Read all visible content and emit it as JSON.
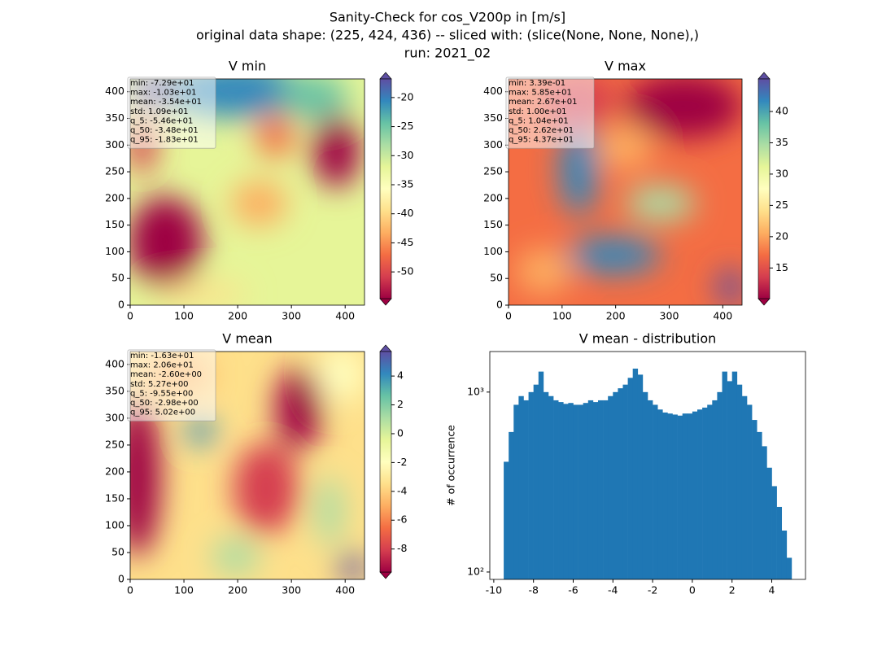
{
  "figure_title": [
    "Sanity-Check for cos_V200p in [m/s]",
    "original data shape: (225, 424, 436) -- sliced with: (slice(None, None, None),)",
    "run: 2021_02"
  ],
  "chart_data": [
    {
      "type": "heatmap",
      "title": "V min",
      "colormap": "Spectral",
      "stats": [
        "min: -7.29e+01",
        "max: -1.03e+01",
        "mean: -3.54e+01",
        "std: 1.09e+01",
        "q_5: -5.46e+01",
        "q_50: -3.48e+01",
        "q_95: -1.83e+01"
      ],
      "xlim": [
        0,
        436
      ],
      "ylim": [
        0,
        424
      ],
      "xticks": [
        0,
        100,
        200,
        300,
        400
      ],
      "yticks": [
        0,
        50,
        100,
        150,
        200,
        250,
        300,
        350,
        400
      ],
      "clim": [
        -54.6,
        -16.8
      ],
      "cticks": [
        -50,
        -45,
        -40,
        -35,
        -30,
        -25,
        -20
      ]
    },
    {
      "type": "heatmap",
      "title": "V max",
      "colormap": "Spectral",
      "stats": [
        "min: 3.39e-01",
        "max: 5.85e+01",
        "mean: 2.67e+01",
        "std: 1.00e+01",
        "q_5: 1.04e+01",
        "q_50: 2.62e+01",
        "q_95: 4.37e+01"
      ],
      "xlim": [
        0,
        436
      ],
      "ylim": [
        0,
        424
      ],
      "xticks": [
        0,
        100,
        200,
        300,
        400
      ],
      "yticks": [
        0,
        50,
        100,
        150,
        200,
        250,
        300,
        350,
        400
      ],
      "clim": [
        10.1,
        45.2
      ],
      "cticks": [
        15,
        20,
        25,
        30,
        35,
        40
      ]
    },
    {
      "type": "heatmap",
      "title": "V mean",
      "colormap": "Spectral",
      "stats": [
        "min: -1.63e+01",
        "max: 2.06e+01",
        "mean: -2.60e+00",
        "std: 5.27e+00",
        "q_5: -9.55e+00",
        "q_50: -2.98e+00",
        "q_95: 5.02e+00"
      ],
      "xlim": [
        0,
        436
      ],
      "ylim": [
        0,
        424
      ],
      "xticks": [
        0,
        100,
        200,
        300,
        400
      ],
      "yticks": [
        0,
        50,
        100,
        150,
        200,
        250,
        300,
        350,
        400
      ],
      "clim": [
        -9.6,
        5.7
      ],
      "cticks": [
        -8,
        -6,
        -4,
        -2,
        0,
        2,
        4
      ]
    },
    {
      "type": "histogram",
      "title": "V mean - distribution",
      "ylabel": "# of occurrence",
      "color": "#1f77b4",
      "log_y": true,
      "bins": [
        -9.5,
        -9.25,
        -9,
        -8.75,
        -8.5,
        -8.25,
        -8,
        -7.75,
        -7.5,
        -7.25,
        -7,
        -6.75,
        -6.5,
        -6.25,
        -6,
        -5.75,
        -5.5,
        -5.25,
        -5,
        -4.75,
        -4.5,
        -4.25,
        -4,
        -3.75,
        -3.5,
        -3.25,
        -3,
        -2.75,
        -2.5,
        -2.25,
        -2,
        -1.75,
        -1.5,
        -1.25,
        -1,
        -0.75,
        -0.5,
        -0.25,
        0,
        0.25,
        0.5,
        0.75,
        1,
        1.25,
        1.5,
        1.75,
        2,
        2.25,
        2.5,
        2.75,
        3,
        3.25,
        3.5,
        3.75,
        4,
        4.25,
        4.5,
        4.75,
        5
      ],
      "values": [
        410,
        600,
        850,
        950,
        900,
        1000,
        1100,
        1300,
        1000,
        950,
        900,
        880,
        860,
        870,
        850,
        850,
        870,
        900,
        880,
        900,
        900,
        950,
        1000,
        1050,
        1100,
        1200,
        1350,
        1250,
        1000,
        900,
        850,
        800,
        770,
        760,
        750,
        740,
        760,
        760,
        780,
        800,
        820,
        850,
        900,
        1000,
        1300,
        1150,
        1300,
        1100,
        950,
        850,
        700,
        600,
        500,
        380,
        300,
        230,
        170,
        120
      ],
      "xlim": [
        -10.2,
        5.7
      ],
      "ylim": [
        91,
        1680
      ],
      "xticks": [
        -10,
        -8,
        -6,
        -4,
        -2,
        0,
        2,
        4
      ],
      "yticks": [
        {
          "value": 100,
          "label": "10²"
        },
        {
          "value": 1000,
          "label": "10³"
        }
      ]
    }
  ]
}
